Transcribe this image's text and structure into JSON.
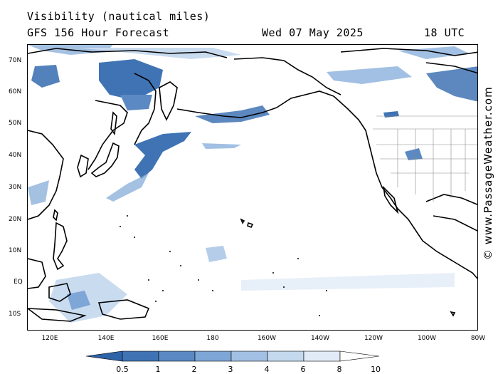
{
  "header": {
    "title": "Visibility (nautical miles)",
    "subtitle": "GFS 156 Hour Forecast",
    "date": "Wed 07 May 2025",
    "time": "18 UTC"
  },
  "credit": "© www.PassageWeather.com",
  "map": {
    "lat_labels": [
      "70N",
      "60N",
      "50N",
      "40N",
      "30N",
      "20N",
      "10N",
      "EQ",
      "10S"
    ],
    "lon_labels": [
      "120E",
      "140E",
      "160E",
      "180",
      "160W",
      "140W",
      "120W",
      "100W",
      "80W"
    ],
    "colors": {
      "land_outline": "#000000",
      "state_borders": "#888888",
      "low_vis": "#3f73b4",
      "mid_vis": "#7ea6d6",
      "high_vis": "#c9dbef",
      "clear": "#ffffff"
    }
  },
  "legend": {
    "labels": [
      "0.5",
      "1",
      "2",
      "3",
      "4",
      "6",
      "8",
      "10"
    ],
    "colors": [
      "#2f63a8",
      "#3f73b4",
      "#5b89c3",
      "#7ea6d6",
      "#a2c0e3",
      "#c4d8ee",
      "#e1ebf7",
      "#ffffff"
    ]
  }
}
